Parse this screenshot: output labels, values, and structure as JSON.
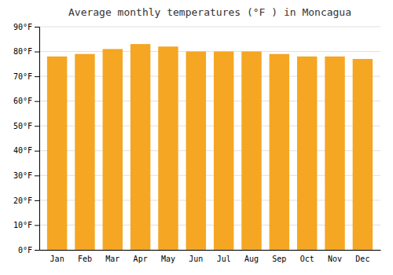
{
  "chart_data": {
    "type": "bar",
    "title": "Average monthly temperatures (°F ) in Moncagua",
    "categories": [
      "Jan",
      "Feb",
      "Mar",
      "Apr",
      "May",
      "Jun",
      "Jul",
      "Aug",
      "Sep",
      "Oct",
      "Nov",
      "Dec"
    ],
    "values": [
      78,
      79,
      81,
      83,
      82,
      80,
      80,
      80,
      79,
      78,
      78,
      77
    ],
    "color": "#F5A623",
    "ylim": [
      0,
      90
    ],
    "yticks": [
      {
        "value": 0,
        "label": "0°F"
      },
      {
        "value": 10,
        "label": "10°F"
      },
      {
        "value": 20,
        "label": "20°F"
      },
      {
        "value": 30,
        "label": "30°F"
      },
      {
        "value": 40,
        "label": "40°F"
      },
      {
        "value": 50,
        "label": "50°F"
      },
      {
        "value": 60,
        "label": "60°F"
      },
      {
        "value": 70,
        "label": "70°F"
      },
      {
        "value": 80,
        "label": "80°F"
      },
      {
        "value": 90,
        "label": "90°F"
      }
    ],
    "grid": true
  }
}
